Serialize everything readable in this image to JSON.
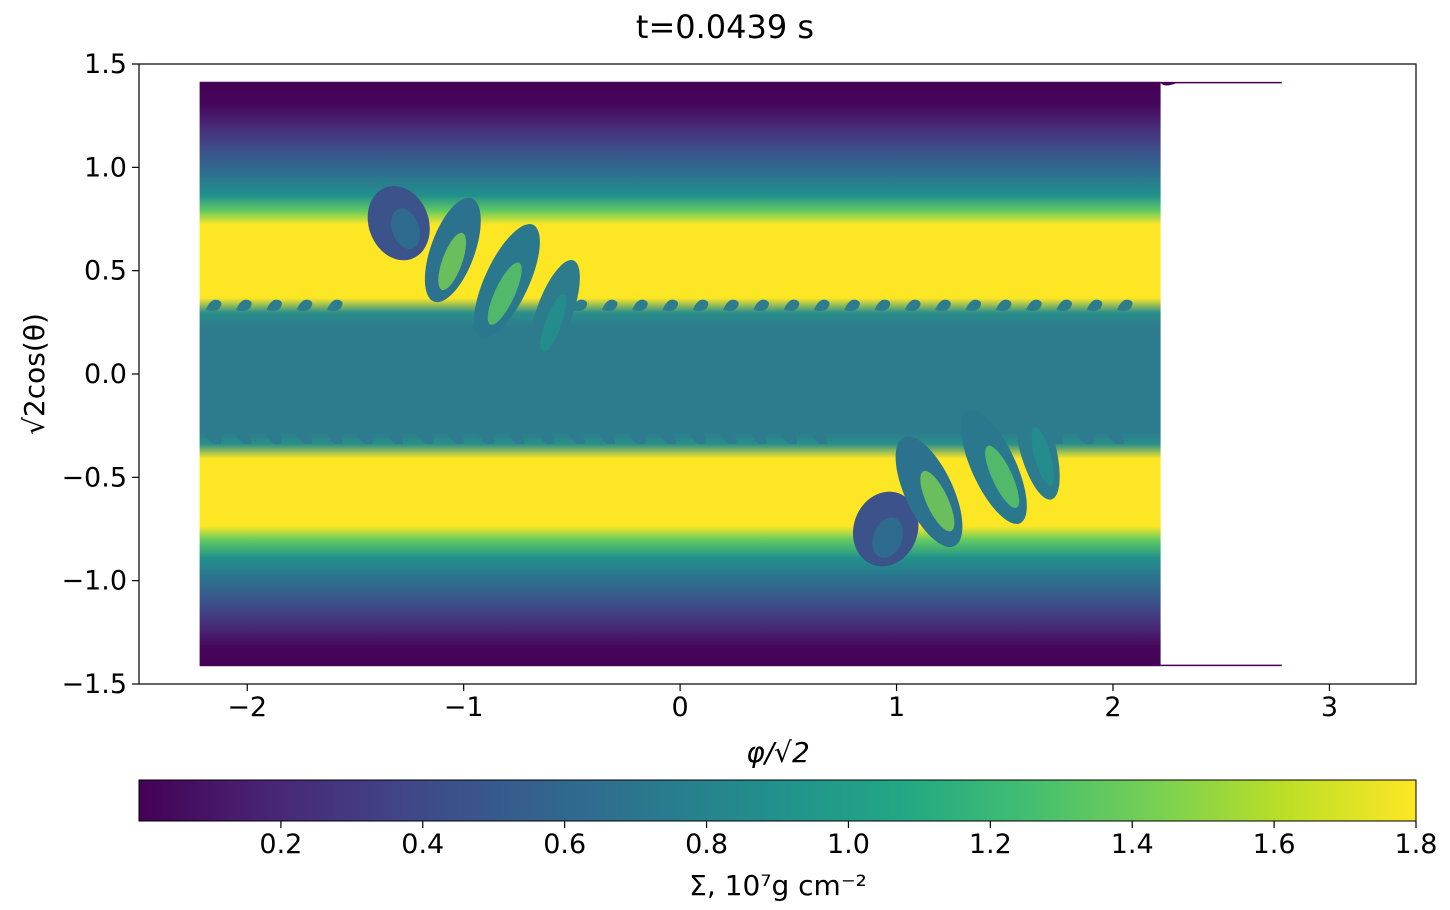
{
  "chart_data": {
    "type": "heatmap",
    "title": "t=0.0439 s",
    "xlabel": "φ/√2",
    "ylabel": "√2cos(θ)",
    "xlim": [
      -2.5,
      3.4
    ],
    "ylim": [
      -1.5,
      1.5
    ],
    "x_ticks": [
      -2,
      -1,
      0,
      1,
      2,
      3
    ],
    "y_ticks": [
      1.5,
      1.0,
      0.5,
      0.0,
      -0.5,
      -1.0,
      -1.5
    ],
    "x_tick_labels": [
      "−2",
      "−1",
      "0",
      "1",
      "2",
      "3"
    ],
    "y_tick_labels": [
      "1.5",
      "1.0",
      "0.5",
      "0.0",
      "−0.5",
      "−1.0",
      "−1.5"
    ],
    "data_extent": {
      "x": [
        -2.22,
        2.22
      ],
      "y": [
        -1.414,
        1.414
      ]
    },
    "bands": [
      {
        "y_range": [
          0.6,
          1.414
        ],
        "description_value": "low at edge, rising to high"
      },
      {
        "y_range": [
          0.32,
          0.6
        ],
        "value": 1.8
      },
      {
        "y_range": [
          -0.3,
          0.32
        ],
        "value": 0.65
      },
      {
        "y_range": [
          -0.65,
          -0.3
        ],
        "value": 1.8
      },
      {
        "y_range": [
          -1.414,
          -0.65
        ],
        "description_value": "high falling to low at edge"
      }
    ],
    "vortex_clusters": [
      {
        "x_center": -1.0,
        "y_center": 0.4
      },
      {
        "x_center": 1.2,
        "y_center": -0.45
      }
    ],
    "colorbar": {
      "label": "Σ, 10⁷g cm⁻²",
      "range": [
        0.0,
        1.8
      ],
      "ticks": [
        0.2,
        0.4,
        0.6,
        0.8,
        1.0,
        1.2,
        1.4,
        1.6,
        1.8
      ],
      "tick_labels": [
        "0.2",
        "0.4",
        "0.6",
        "0.8",
        "1.0",
        "1.2",
        "1.4",
        "1.6",
        "1.8"
      ],
      "colormap": "viridis",
      "colors": [
        "#440154",
        "#482475",
        "#414487",
        "#355f8d",
        "#2a788e",
        "#21918c",
        "#22a884",
        "#44bf70",
        "#7ad151",
        "#bddf26",
        "#fde725"
      ]
    }
  }
}
